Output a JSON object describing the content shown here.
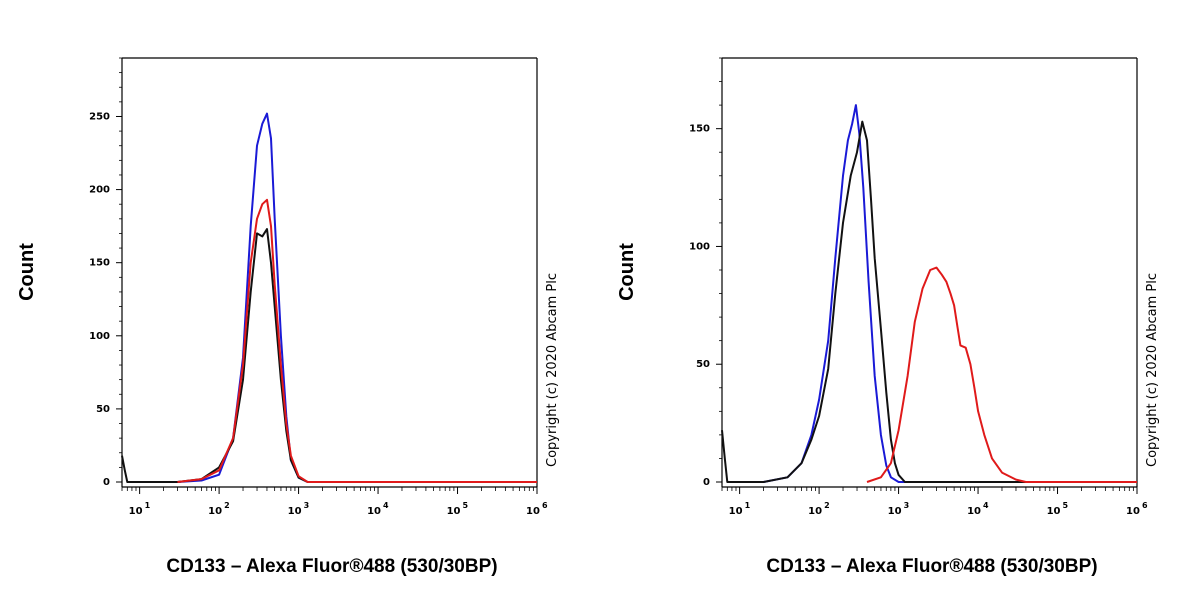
{
  "chart_data": [
    {
      "type": "line",
      "xscale": "log",
      "xlabel": "CD133 – Alexa Fluor®488 (530/30BP)",
      "ylabel": "Count",
      "xlim": [
        6,
        1000000
      ],
      "ylim": [
        0,
        290
      ],
      "yticks": [
        "0",
        "50",
        "100",
        "150",
        "200",
        "250"
      ],
      "xticks": [
        {
          "base": "10",
          "exp": "1"
        },
        {
          "base": "10",
          "exp": "2"
        },
        {
          "base": "10",
          "exp": "3"
        },
        {
          "base": "10",
          "exp": "4"
        },
        {
          "base": "10",
          "exp": "5"
        },
        {
          "base": "10",
          "exp": "6"
        }
      ],
      "annotation": "Copyright (c) 2020 Abcam Plc",
      "series": [
        {
          "color": "#1a1ad6",
          "points": [
            [
              30,
              0
            ],
            [
              60,
              1
            ],
            [
              100,
              5
            ],
            [
              150,
              30
            ],
            [
              200,
              85
            ],
            [
              250,
              175
            ],
            [
              300,
              230
            ],
            [
              350,
              245
            ],
            [
              400,
              252
            ],
            [
              450,
              235
            ],
            [
              500,
              180
            ],
            [
              600,
              100
            ],
            [
              700,
              45
            ],
            [
              800,
              15
            ],
            [
              1000,
              3
            ],
            [
              1300,
              0
            ],
            [
              1000000,
              0
            ]
          ]
        },
        {
          "color": "#111111",
          "points": [
            [
              6,
              18
            ],
            [
              6.5,
              8
            ],
            [
              7,
              0
            ],
            [
              30,
              0
            ],
            [
              60,
              2
            ],
            [
              100,
              10
            ],
            [
              150,
              28
            ],
            [
              200,
              70
            ],
            [
              250,
              130
            ],
            [
              300,
              170
            ],
            [
              350,
              168
            ],
            [
              400,
              173
            ],
            [
              450,
              150
            ],
            [
              500,
              120
            ],
            [
              600,
              70
            ],
            [
              700,
              35
            ],
            [
              800,
              15
            ],
            [
              1000,
              3
            ],
            [
              1300,
              0
            ],
            [
              1000000,
              0
            ]
          ]
        },
        {
          "color": "#e01a1a",
          "points": [
            [
              30,
              0
            ],
            [
              60,
              2
            ],
            [
              100,
              8
            ],
            [
              150,
              30
            ],
            [
              200,
              80
            ],
            [
              250,
              150
            ],
            [
              300,
              180
            ],
            [
              350,
              190
            ],
            [
              400,
              193
            ],
            [
              450,
              175
            ],
            [
              500,
              135
            ],
            [
              600,
              80
            ],
            [
              700,
              40
            ],
            [
              800,
              18
            ],
            [
              1000,
              4
            ],
            [
              1300,
              0
            ],
            [
              1000000,
              0
            ]
          ]
        }
      ]
    },
    {
      "type": "line",
      "xscale": "log",
      "xlabel": "CD133 – Alexa Fluor®488 (530/30BP)",
      "ylabel": "Count",
      "xlim": [
        6,
        1000000
      ],
      "ylim": [
        0,
        180
      ],
      "yticks": [
        "0",
        "50",
        "100",
        "150"
      ],
      "xticks": [
        {
          "base": "10",
          "exp": "1"
        },
        {
          "base": "10",
          "exp": "2"
        },
        {
          "base": "10",
          "exp": "3"
        },
        {
          "base": "10",
          "exp": "4"
        },
        {
          "base": "10",
          "exp": "5"
        },
        {
          "base": "10",
          "exp": "6"
        }
      ],
      "annotation": "Copyright (c) 2020 Abcam Plc",
      "series": [
        {
          "color": "#1a1ad6",
          "points": [
            [
              20,
              0
            ],
            [
              40,
              2
            ],
            [
              60,
              8
            ],
            [
              80,
              20
            ],
            [
              100,
              35
            ],
            [
              130,
              60
            ],
            [
              160,
              95
            ],
            [
              200,
              130
            ],
            [
              230,
              145
            ],
            [
              260,
              152
            ],
            [
              290,
              160
            ],
            [
              320,
              148
            ],
            [
              360,
              125
            ],
            [
              420,
              85
            ],
            [
              500,
              45
            ],
            [
              600,
              20
            ],
            [
              700,
              7
            ],
            [
              800,
              2
            ],
            [
              1000,
              0
            ],
            [
              1000000,
              0
            ]
          ]
        },
        {
          "color": "#111111",
          "points": [
            [
              6,
              22
            ],
            [
              6.5,
              10
            ],
            [
              7,
              0
            ],
            [
              20,
              0
            ],
            [
              40,
              2
            ],
            [
              60,
              8
            ],
            [
              80,
              18
            ],
            [
              100,
              28
            ],
            [
              130,
              48
            ],
            [
              160,
              80
            ],
            [
              200,
              110
            ],
            [
              250,
              130
            ],
            [
              300,
              140
            ],
            [
              350,
              153
            ],
            [
              400,
              145
            ],
            [
              450,
              120
            ],
            [
              500,
              95
            ],
            [
              600,
              65
            ],
            [
              700,
              38
            ],
            [
              800,
              18
            ],
            [
              900,
              8
            ],
            [
              1000,
              3
            ],
            [
              1200,
              0
            ],
            [
              1000000,
              0
            ]
          ]
        },
        {
          "color": "#e01a1a",
          "points": [
            [
              400,
              0
            ],
            [
              600,
              2
            ],
            [
              800,
              8
            ],
            [
              1000,
              22
            ],
            [
              1300,
              45
            ],
            [
              1600,
              68
            ],
            [
              2000,
              82
            ],
            [
              2500,
              90
            ],
            [
              3000,
              91
            ],
            [
              3500,
              88
            ],
            [
              4000,
              85
            ],
            [
              4500,
              80
            ],
            [
              5000,
              75
            ],
            [
              5500,
              66
            ],
            [
              6000,
              58
            ],
            [
              7000,
              57
            ],
            [
              8000,
              50
            ],
            [
              9000,
              40
            ],
            [
              10000,
              30
            ],
            [
              12000,
              20
            ],
            [
              15000,
              10
            ],
            [
              20000,
              4
            ],
            [
              30000,
              1
            ],
            [
              40000,
              0
            ],
            [
              1000000,
              0
            ]
          ]
        }
      ]
    }
  ]
}
